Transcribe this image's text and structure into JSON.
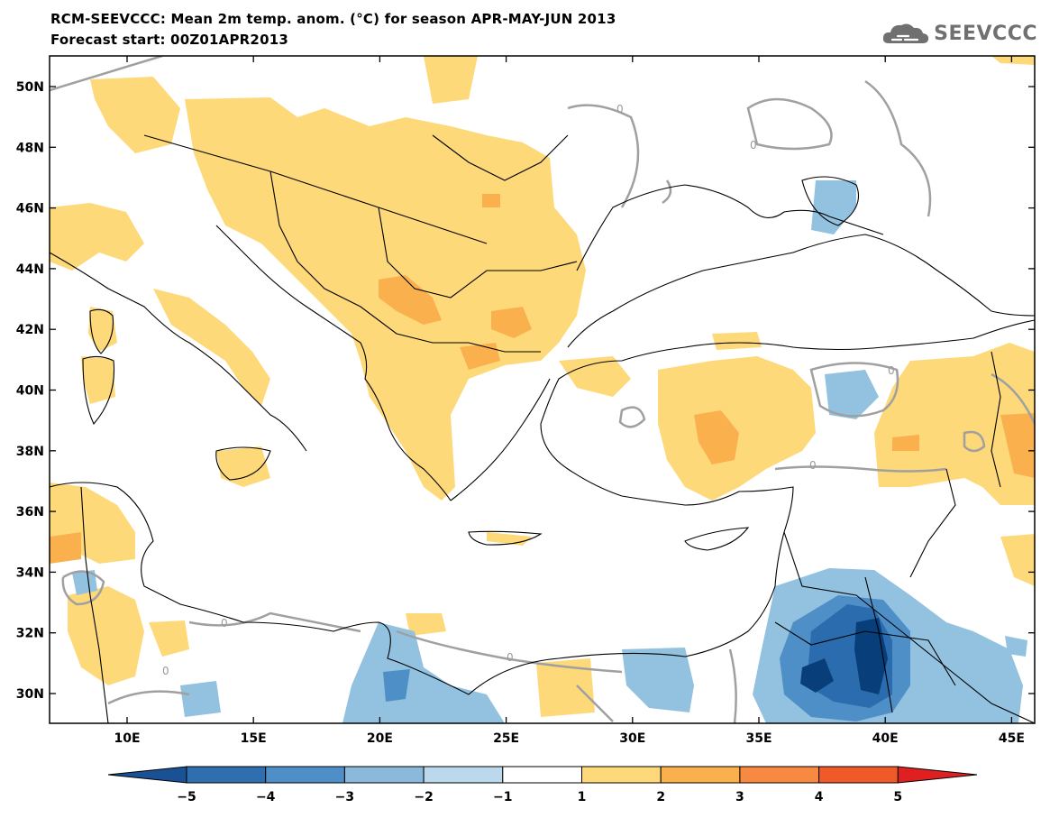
{
  "header": {
    "title_line1": "RCM-SEEVCCC: Mean 2m temp. anom. (°C) for season APR-MAY-JUN 2013",
    "title_line2": "Forecast start: 00Z01APR2013",
    "logo_text": "SEEVCCC"
  },
  "map": {
    "lat_labels": [
      "50N",
      "48N",
      "46N",
      "44N",
      "42N",
      "40N",
      "38N",
      "36N",
      "34N",
      "32N",
      "30N"
    ],
    "lon_labels": [
      "10E",
      "15E",
      "20E",
      "25E",
      "30E",
      "35E",
      "40E",
      "45E"
    ],
    "contour_label": "0",
    "colors": {
      "neg5": "#083e7a",
      "neg4": "#2a6cad",
      "neg3": "#4f8fc7",
      "neg2": "#92c2e0",
      "pos1": "#fdd97a",
      "pos2": "#fbb04e",
      "pos3": "#f78940",
      "pos4": "#f05a28",
      "pos5": "#d92027",
      "neutral": "#ffffff",
      "contour": "#a0a0a0",
      "coast": "#000000"
    }
  },
  "colorbar": {
    "labels": [
      "−5",
      "−4",
      "−3",
      "−2",
      "−1",
      "1",
      "2",
      "3",
      "4",
      "5"
    ],
    "colors": [
      "#1a5094",
      "#2f6fb0",
      "#4f8fc7",
      "#8ab9db",
      "#bcd8ec",
      "#ffffff",
      "#fdd97a",
      "#fbb04e",
      "#f78940",
      "#f05a28",
      "#e02020"
    ]
  }
}
